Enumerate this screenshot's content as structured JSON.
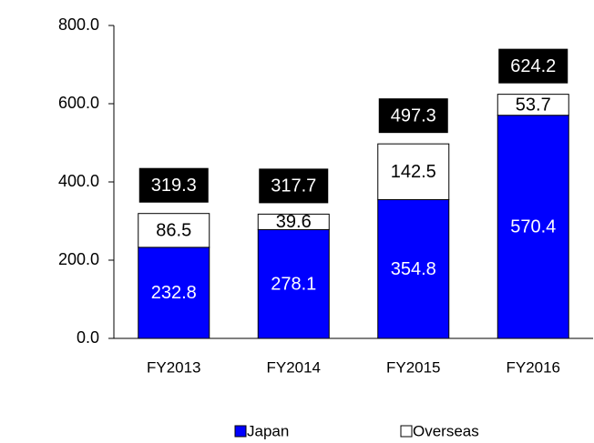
{
  "chart_data": {
    "type": "stacked_bar",
    "categories": [
      "FY2013",
      "FY2014",
      "FY2015",
      "FY2016"
    ],
    "series": [
      {
        "name": "Japan",
        "color": "#0000ff",
        "values": [
          232.8,
          278.1,
          354.8,
          570.4
        ]
      },
      {
        "name": "Overseas",
        "color": "#ffffff",
        "values": [
          86.5,
          39.6,
          142.5,
          53.7
        ]
      }
    ],
    "totals": [
      319.3,
      317.7,
      497.3,
      624.2
    ],
    "ylim": [
      0,
      800
    ],
    "yticks": [
      {
        "value": 0,
        "label": "0.0"
      },
      {
        "value": 200,
        "label": "200.0"
      },
      {
        "value": 400,
        "label": "400.0"
      },
      {
        "value": 600,
        "label": "600.0"
      },
      {
        "value": 800,
        "label": "800.0"
      }
    ],
    "legend": "bottom"
  }
}
